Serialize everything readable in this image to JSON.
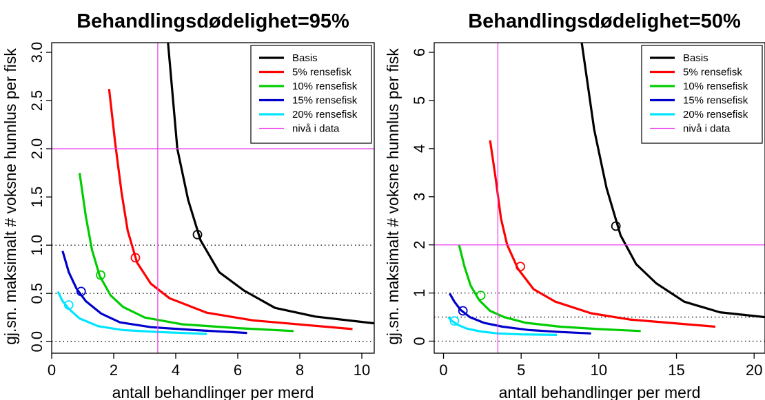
{
  "chart_data": [
    {
      "type": "line",
      "title": "Behandlingsdødelighet=95%",
      "xlabel": "antall behandlinger per merd",
      "ylabel": "gj.sn. maksimalt # voksne hunnlus per fisk",
      "xlim": [
        0,
        10.4
      ],
      "ylim": [
        -0.12,
        3.1
      ],
      "xticks": [
        0,
        2,
        4,
        6,
        8,
        10
      ],
      "yticks": [
        0.0,
        0.5,
        1.0,
        1.5,
        2.0,
        2.5,
        3.0
      ],
      "ytick_labels": [
        "0.0",
        "0.5",
        "1.0",
        "1.5",
        "2.0",
        "2.5",
        "3.0"
      ],
      "grid": false,
      "legend_position": "top-right",
      "ref_vline": 3.42,
      "ref_hline": 2.0,
      "dotted_hlines": [
        0,
        0.5,
        1.0
      ],
      "series": [
        {
          "name": "Basis",
          "color": "#000000",
          "x": [
            3.75,
            4.05,
            4.4,
            4.8,
            5.4,
            6.2,
            7.2,
            8.5,
            10.4
          ],
          "y": [
            3.1,
            2.0,
            1.47,
            1.05,
            0.72,
            0.53,
            0.35,
            0.26,
            0.19
          ],
          "marker": [
            4.7,
            1.11
          ]
        },
        {
          "name": "5% rensefisk",
          "color": "#ff0000",
          "x": [
            1.85,
            2.05,
            2.25,
            2.45,
            2.75,
            3.2,
            3.8,
            5.0,
            6.5,
            9.7
          ],
          "y": [
            2.62,
            2.05,
            1.55,
            1.15,
            0.82,
            0.6,
            0.45,
            0.3,
            0.22,
            0.13
          ],
          "marker": [
            2.7,
            0.87
          ]
        },
        {
          "name": "10% rensefisk",
          "color": "#00cc00",
          "x": [
            0.9,
            1.1,
            1.3,
            1.55,
            1.9,
            2.3,
            3.0,
            4.2,
            6.0,
            7.8
          ],
          "y": [
            1.75,
            1.3,
            0.95,
            0.68,
            0.48,
            0.36,
            0.25,
            0.18,
            0.14,
            0.11
          ],
          "marker": [
            1.58,
            0.69
          ]
        },
        {
          "name": "15% rensefisk",
          "color": "#0000cc",
          "x": [
            0.35,
            0.55,
            0.8,
            1.1,
            1.6,
            2.2,
            3.2,
            4.6,
            6.3
          ],
          "y": [
            0.94,
            0.72,
            0.55,
            0.42,
            0.29,
            0.2,
            0.15,
            0.12,
            0.09
          ],
          "marker": [
            0.95,
            0.52
          ]
        },
        {
          "name": "20% rensefisk",
          "color": "#00e5ff",
          "x": [
            0.2,
            0.35,
            0.55,
            0.9,
            1.5,
            2.3,
            3.4,
            5.0
          ],
          "y": [
            0.52,
            0.42,
            0.34,
            0.24,
            0.16,
            0.12,
            0.1,
            0.08
          ],
          "marker": [
            0.55,
            0.38
          ]
        },
        {
          "name": "nivå i data",
          "color": "#ee44ee",
          "line_only": true
        }
      ]
    },
    {
      "type": "line",
      "title": "Behandlingsdødelighet=50%",
      "xlabel": "antall behandlinger per merd",
      "ylabel": "gj.sn. maksimalt # voksne hunnlus per fisk",
      "xlim": [
        -0.6,
        20.7
      ],
      "ylim": [
        -0.25,
        6.2
      ],
      "xticks": [
        0,
        5,
        10,
        15,
        20
      ],
      "yticks": [
        0,
        1,
        2,
        3,
        4,
        5,
        6
      ],
      "ytick_labels": [
        "0",
        "1",
        "2",
        "3",
        "4",
        "5",
        "6"
      ],
      "grid": false,
      "legend_position": "top-right",
      "ref_vline": 3.5,
      "ref_hline": 2.0,
      "dotted_hlines": [
        0,
        0.5,
        1.0
      ],
      "series": [
        {
          "name": "Basis",
          "color": "#000000",
          "x": [
            8.9,
            9.7,
            10.5,
            11.4,
            12.4,
            13.7,
            15.5,
            17.8,
            20.7
          ],
          "y": [
            6.2,
            4.4,
            3.18,
            2.2,
            1.6,
            1.2,
            0.82,
            0.6,
            0.5
          ],
          "marker": [
            11.1,
            2.39
          ]
        },
        {
          "name": "5% rensefisk",
          "color": "#ff0000",
          "x": [
            3.0,
            3.35,
            3.7,
            4.1,
            4.8,
            5.8,
            7.2,
            9.5,
            12.0,
            17.5
          ],
          "y": [
            4.17,
            3.4,
            2.55,
            2.0,
            1.5,
            1.08,
            0.82,
            0.58,
            0.45,
            0.3
          ],
          "marker": [
            4.95,
            1.55
          ]
        },
        {
          "name": "10% rensefisk",
          "color": "#00cc00",
          "x": [
            1.0,
            1.35,
            1.75,
            2.3,
            3.0,
            3.9,
            5.3,
            7.5,
            10.0,
            12.7
          ],
          "y": [
            2.0,
            1.55,
            1.15,
            0.85,
            0.63,
            0.5,
            0.38,
            0.3,
            0.25,
            0.21
          ],
          "marker": [
            2.4,
            0.95
          ]
        },
        {
          "name": "15% rensefisk",
          "color": "#0000cc",
          "x": [
            0.4,
            0.7,
            1.1,
            1.7,
            2.6,
            3.8,
            5.5,
            7.5,
            9.5
          ],
          "y": [
            0.99,
            0.82,
            0.65,
            0.5,
            0.38,
            0.3,
            0.23,
            0.19,
            0.16
          ],
          "marker": [
            1.25,
            0.63
          ]
        },
        {
          "name": "20% rensefisk",
          "color": "#00e5ff",
          "x": [
            0.3,
            0.55,
            0.9,
            1.5,
            2.4,
            3.5,
            5.0,
            7.3
          ],
          "y": [
            0.5,
            0.42,
            0.34,
            0.26,
            0.2,
            0.16,
            0.14,
            0.13
          ],
          "marker": [
            0.7,
            0.42
          ]
        },
        {
          "name": "nivå i data",
          "color": "#ee44ee",
          "line_only": true
        }
      ]
    }
  ]
}
